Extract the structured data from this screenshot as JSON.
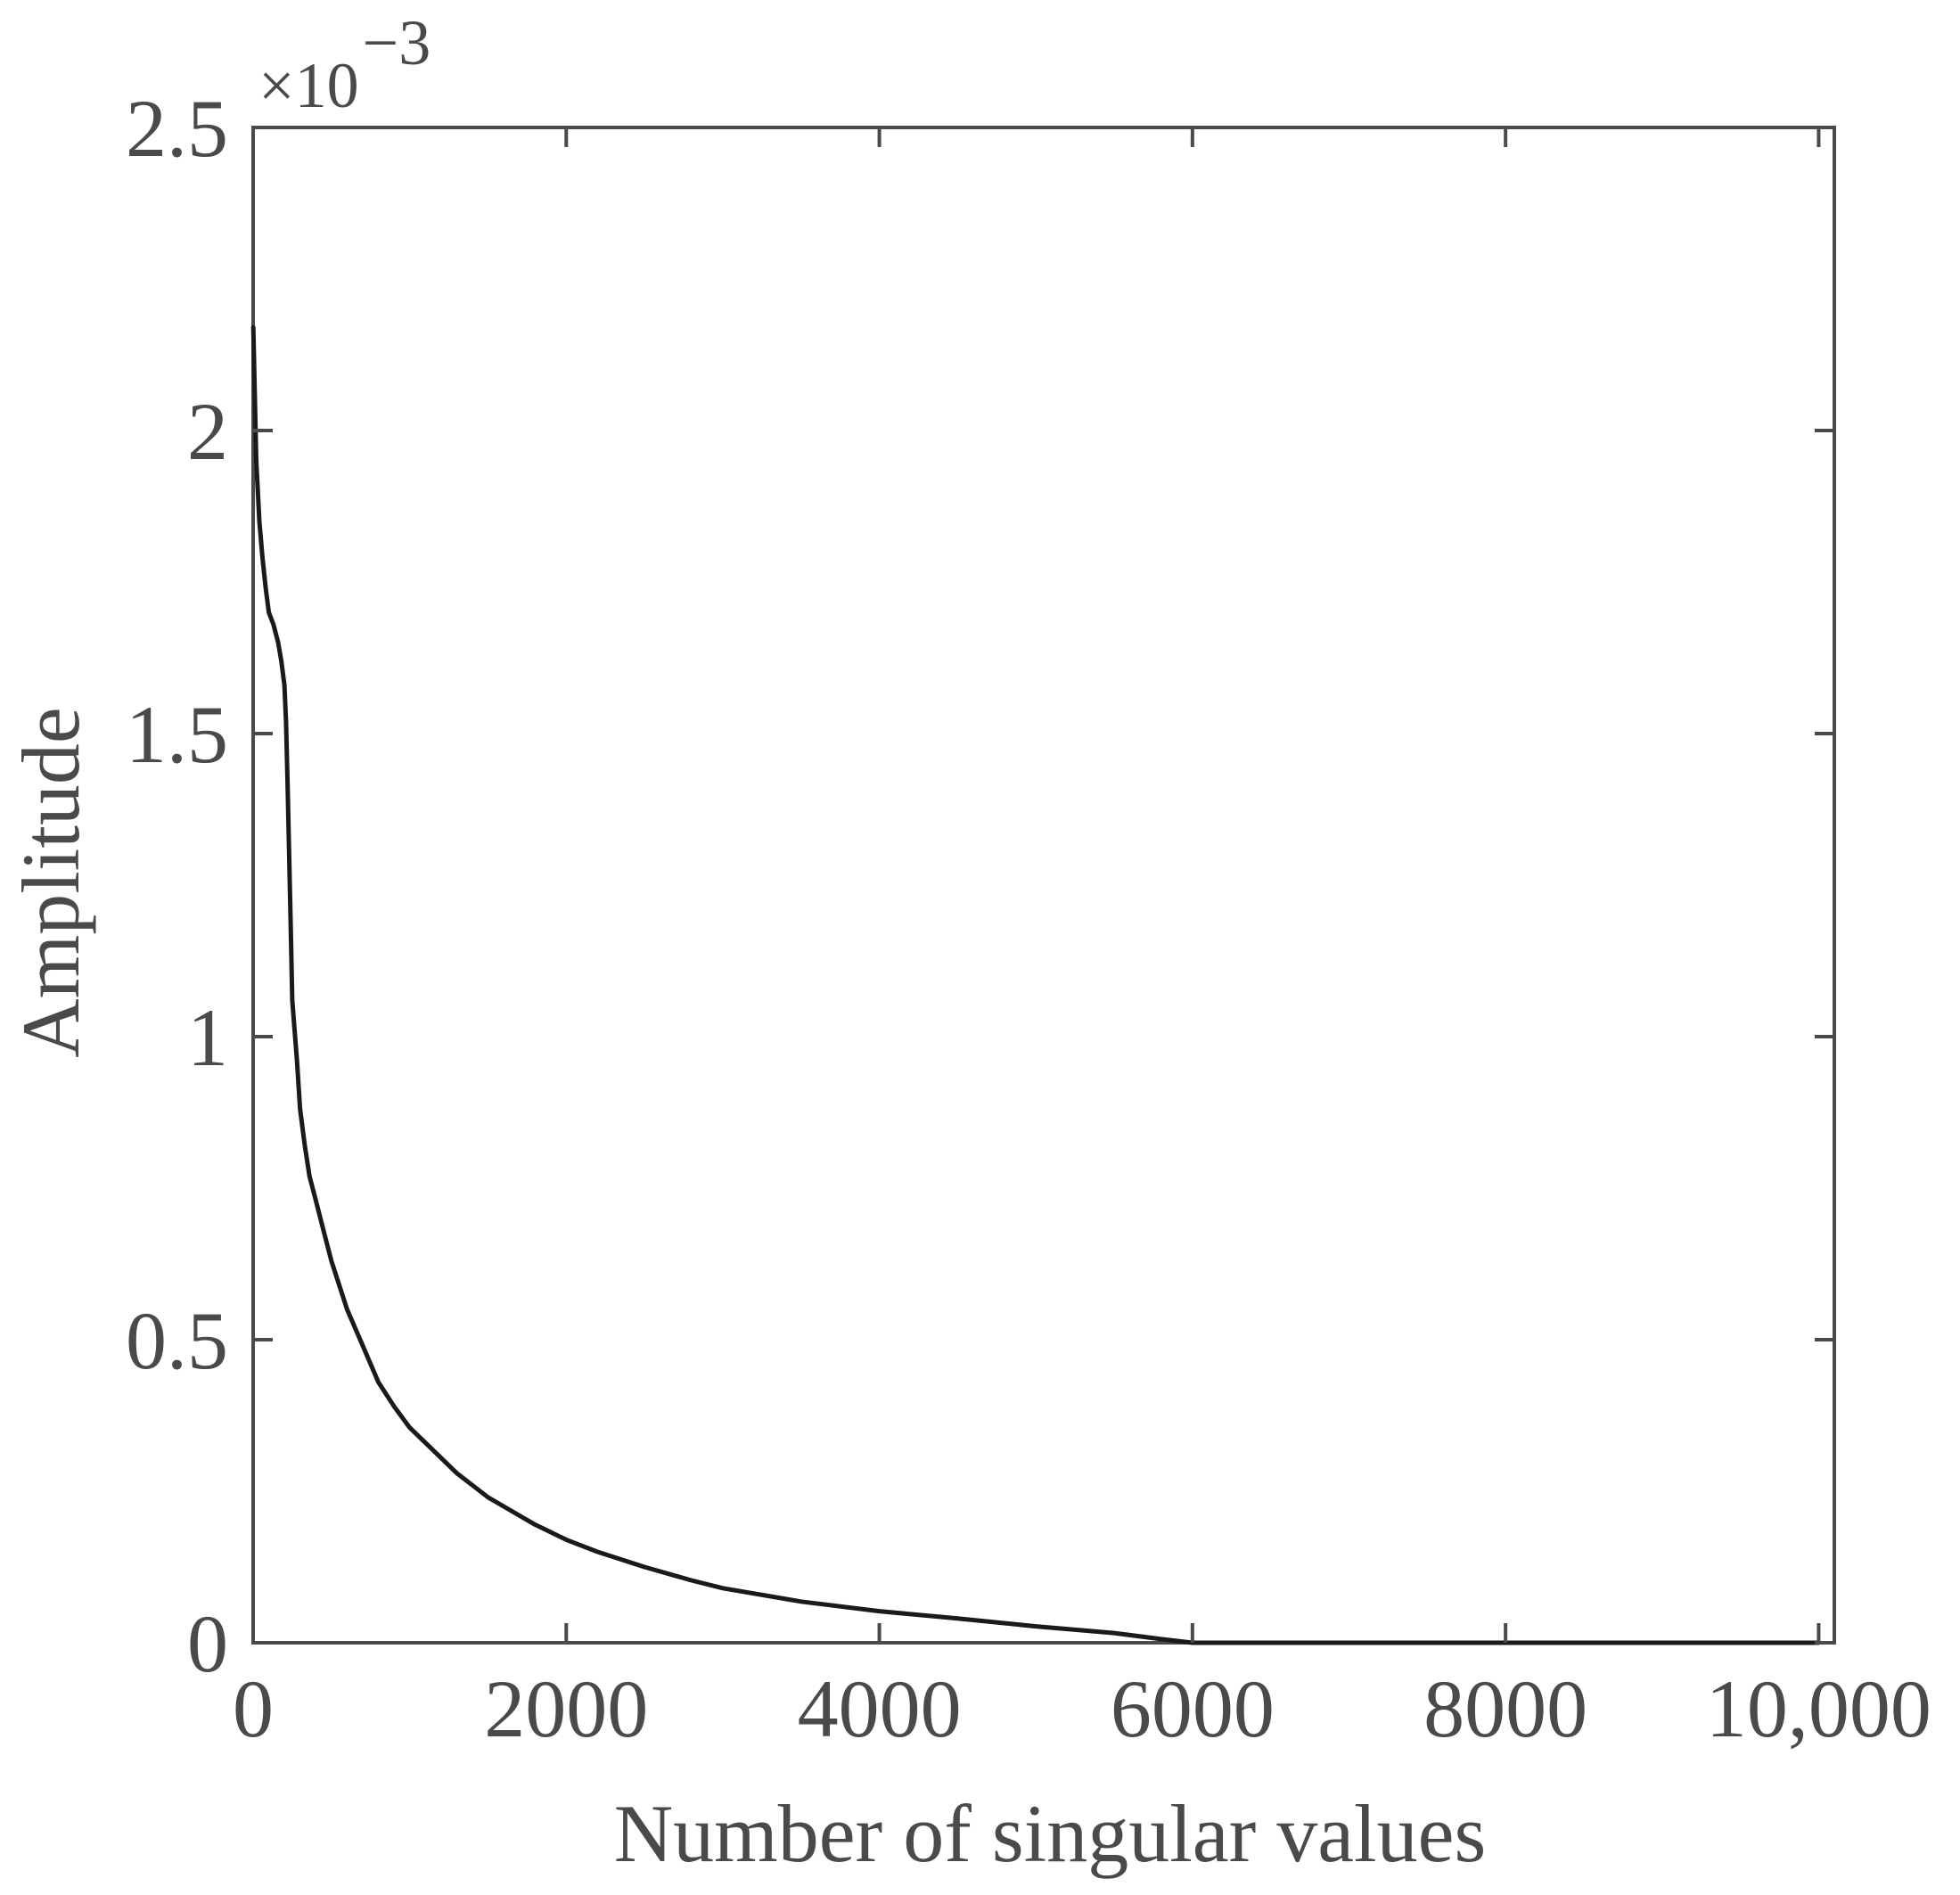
{
  "chart_data": {
    "type": "line",
    "title": "",
    "xlabel": "Number of singular values",
    "ylabel": "Amplitude",
    "xlim": [
      0,
      10100
    ],
    "ylim": [
      0,
      2.5
    ],
    "y_multiplier": {
      "base": "×10",
      "exponent": "−3"
    },
    "x_ticks": [
      0,
      2000,
      4000,
      6000,
      8000,
      10000
    ],
    "x_tick_labels": [
      "0",
      "2000",
      "4000",
      "6000",
      "8000",
      "10,000"
    ],
    "y_ticks": [
      0,
      0.5,
      1,
      1.5,
      2,
      2.5
    ],
    "y_tick_labels": [
      "0",
      "0.5",
      "1",
      "1.5",
      "2",
      "2.5"
    ],
    "grid": false,
    "box": true,
    "series": [
      {
        "color": "#1a1a1a",
        "x": [
          1,
          20,
          40,
          60,
          80,
          100,
          130,
          160,
          180,
          200,
          210,
          220,
          230,
          240,
          250,
          280,
          300,
          330,
          360,
          400,
          450,
          500,
          550,
          600,
          700,
          800,
          900,
          1000,
          1100,
          1200,
          1300,
          1400,
          1500,
          1600,
          1800,
          2000,
          2200,
          2500,
          2800,
          3000,
          3500,
          4000,
          4500,
          5000,
          5500,
          5800,
          6000,
          6500,
          7000,
          8000,
          9000,
          10000
        ],
        "y": [
          2.17,
          1.95,
          1.85,
          1.79,
          1.74,
          1.7,
          1.68,
          1.65,
          1.62,
          1.58,
          1.52,
          1.42,
          1.3,
          1.18,
          1.06,
          0.96,
          0.88,
          0.82,
          0.77,
          0.73,
          0.68,
          0.63,
          0.59,
          0.55,
          0.49,
          0.43,
          0.39,
          0.355,
          0.33,
          0.305,
          0.28,
          0.26,
          0.24,
          0.225,
          0.195,
          0.17,
          0.15,
          0.125,
          0.103,
          0.09,
          0.068,
          0.052,
          0.04,
          0.027,
          0.016,
          0.006,
          0.0,
          0.0,
          0.0,
          0.0,
          0.0,
          0.0
        ]
      }
    ]
  }
}
